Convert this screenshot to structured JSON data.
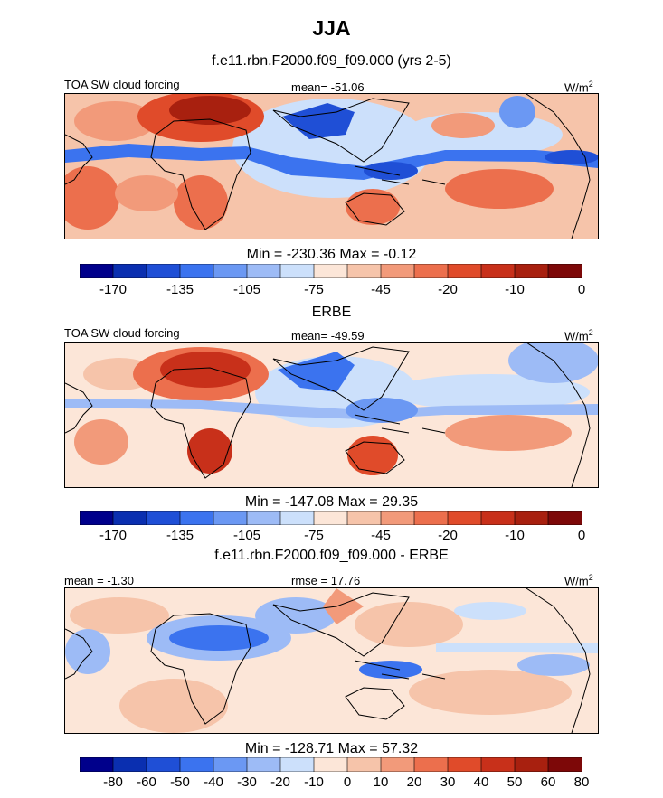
{
  "title": "JJA",
  "chart_data": [
    {
      "type": "heatmap",
      "title": "f.e11.rbn.F2000.f09_f09.000 (yrs 2-5)",
      "left_label": "TOA SW cloud forcing",
      "center_label": "mean= -51.06",
      "unit_base": "W/m",
      "unit_exp": "2",
      "min_max": "Min = -230.36 Max =  -0.12",
      "colorbar": {
        "levels": [
          "-170",
          "-135",
          "-105",
          "-75",
          "-45",
          "-20",
          "-10",
          "0"
        ],
        "colors": [
          "#00008b",
          "#0a2fb0",
          "#1f4fd6",
          "#3b73ef",
          "#6b98f3",
          "#9dbbf6",
          "#cce0fb",
          "#fce6d8",
          "#f6c4aa",
          "#f29a7a",
          "#ec6f4d",
          "#e04b2a",
          "#c8301a",
          "#a8200f",
          "#7d0808"
        ]
      }
    },
    {
      "type": "heatmap",
      "title": "ERBE",
      "left_label": "TOA SW cloud forcing",
      "center_label": "mean= -49.59",
      "unit_base": "W/m",
      "unit_exp": "2",
      "min_max": "Min = -147.08 Max =  29.35",
      "colorbar": {
        "levels": [
          "-170",
          "-135",
          "-105",
          "-75",
          "-45",
          "-20",
          "-10",
          "0"
        ],
        "colors": [
          "#00008b",
          "#0a2fb0",
          "#1f4fd6",
          "#3b73ef",
          "#6b98f3",
          "#9dbbf6",
          "#cce0fb",
          "#fce6d8",
          "#f6c4aa",
          "#f29a7a",
          "#ec6f4d",
          "#e04b2a",
          "#c8301a",
          "#a8200f",
          "#7d0808"
        ]
      }
    },
    {
      "type": "heatmap",
      "title": "f.e11.rbn.F2000.f09_f09.000 - ERBE",
      "left_label": "mean =  -1.30",
      "center_label": "rmse =  17.76",
      "unit_base": "W/m",
      "unit_exp": "2",
      "min_max": "Min = -128.71 Max =  57.32",
      "colorbar": {
        "levels": [
          "-80",
          "-60",
          "-50",
          "-40",
          "-30",
          "-20",
          "-10",
          "0",
          "10",
          "20",
          "30",
          "40",
          "50",
          "60",
          "80"
        ],
        "colors": [
          "#00008b",
          "#0a2fb0",
          "#1f4fd6",
          "#3b73ef",
          "#6b98f3",
          "#9dbbf6",
          "#cce0fb",
          "#fce6d8",
          "#f6c4aa",
          "#f29a7a",
          "#ec6f4d",
          "#e04b2a",
          "#c8301a",
          "#a8200f",
          "#7d0808"
        ]
      }
    }
  ]
}
